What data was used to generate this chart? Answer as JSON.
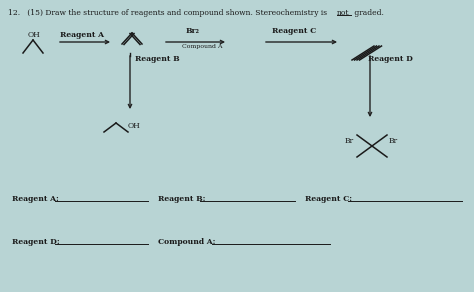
{
  "bg_color": "#b8d4d4",
  "text_color": "#1a1a1a",
  "arrow_color": "#222222",
  "fig_w": 4.74,
  "fig_h": 2.92,
  "dpi": 100,
  "title_prefix": "12.   (15) Draw the structure of reagents and compound shown. Stereochemistry is ",
  "title_not": "not",
  "title_suffix": " graded.",
  "reagent_a_label": "Reagent A",
  "reagent_b_label": "Reagent B",
  "reagent_c_label": "Reagent C",
  "reagent_d_label": "Reagent D",
  "compound_a_label": "Compound A",
  "br2_label": "Br₂",
  "ans_reagent_a": "Reagent A:",
  "ans_reagent_b": "Reagent B:",
  "ans_reagent_c": "Reagent C:",
  "ans_reagent_d": "Reagent D:",
  "ans_compound_a": "Compound A:"
}
